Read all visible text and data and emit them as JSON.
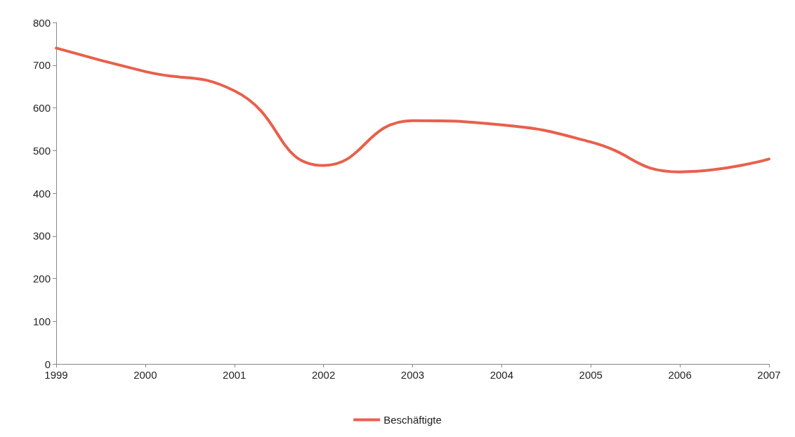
{
  "chart_data": {
    "type": "line",
    "categories": [
      "1999",
      "2000",
      "2001",
      "2002",
      "2003",
      "2004",
      "2005",
      "2006",
      "2007"
    ],
    "series": [
      {
        "name": "Beschäftigte",
        "color": "#e8604c",
        "values": [
          740,
          685,
          640,
          465,
          570,
          560,
          520,
          450,
          480
        ]
      }
    ],
    "ylim": [
      0,
      800
    ],
    "yticks": [
      0,
      100,
      200,
      300,
      400,
      500,
      600,
      700,
      800
    ],
    "grid": false,
    "legend": "bottom",
    "marker": "none",
    "line_style": "solid"
  }
}
